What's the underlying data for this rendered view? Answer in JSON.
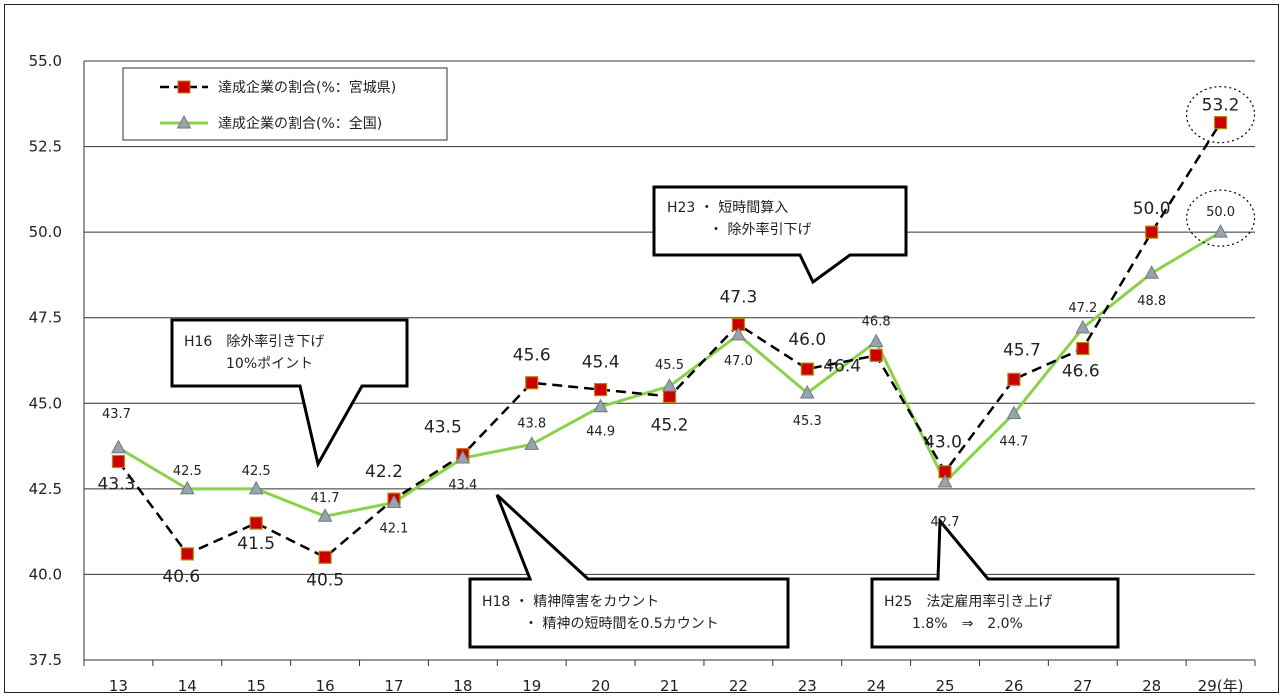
{
  "chart_data": {
    "type": "line",
    "categories": [
      "13",
      "14",
      "15",
      "16",
      "17",
      "18",
      "19",
      "20",
      "21",
      "22",
      "23",
      "24",
      "25",
      "26",
      "27",
      "28",
      "29(年)"
    ],
    "ylim": [
      37.5,
      55.0
    ],
    "yticks": [
      "37.5",
      "40.0",
      "42.5",
      "45.0",
      "47.5",
      "50.0",
      "52.5",
      "55.0"
    ],
    "ytick_values": [
      37.5,
      40.0,
      42.5,
      45.0,
      47.5,
      50.0,
      52.5,
      55.0
    ],
    "grid": true,
    "legend_position": "top-left",
    "series": [
      {
        "name": "達成企業の割合(%：宮城県)",
        "style": "dashed-black-square",
        "line_color": "#000000",
        "marker_color": "#cc0000",
        "values": [
          43.3,
          40.6,
          41.5,
          40.5,
          42.2,
          43.5,
          45.6,
          45.4,
          45.2,
          47.3,
          46.0,
          46.4,
          43.0,
          45.7,
          46.6,
          50.0,
          53.2
        ],
        "labels": [
          "43.3",
          "40.6",
          "41.5",
          "40.5",
          "42.2",
          "43.5",
          "45.6",
          "45.4",
          "45.2",
          "47.3",
          "46.0",
          "46.4",
          "43.0",
          "45.7",
          "46.6",
          "50.0",
          "53.2"
        ]
      },
      {
        "name": "達成企業の割合(%：全国)",
        "style": "solid-green-triangle",
        "line_color": "#8cd14a",
        "marker_color": "#9aa3ab",
        "values": [
          43.7,
          42.5,
          42.5,
          41.7,
          42.1,
          43.4,
          43.8,
          44.9,
          45.5,
          47.0,
          45.3,
          46.8,
          42.7,
          44.7,
          47.2,
          48.8,
          50.0
        ],
        "labels": [
          "43.7",
          "42.5",
          "42.5",
          "41.7",
          "42.1",
          "43.4",
          "43.8",
          "44.9",
          "45.5",
          "47.0",
          "45.3",
          "46.8",
          "42.7",
          "44.7",
          "47.2",
          "48.8",
          "50.0"
        ]
      }
    ],
    "annotations": [
      {
        "id": "h16",
        "lines": [
          "H16　除外率引き下げ",
          "　　　10%ポイント"
        ]
      },
      {
        "id": "h18",
        "lines": [
          "H18 ・ 精神障害をカウント",
          "　　　・ 精神の短時間を0.5カウント"
        ]
      },
      {
        "id": "h23",
        "lines": [
          "H23 ・ 短時間算入",
          "　　　・ 除外率引下げ"
        ]
      },
      {
        "id": "h25",
        "lines": [
          "H25　法定雇用率引き上げ",
          "　　1.8%　⇒　2.0%"
        ]
      }
    ]
  }
}
